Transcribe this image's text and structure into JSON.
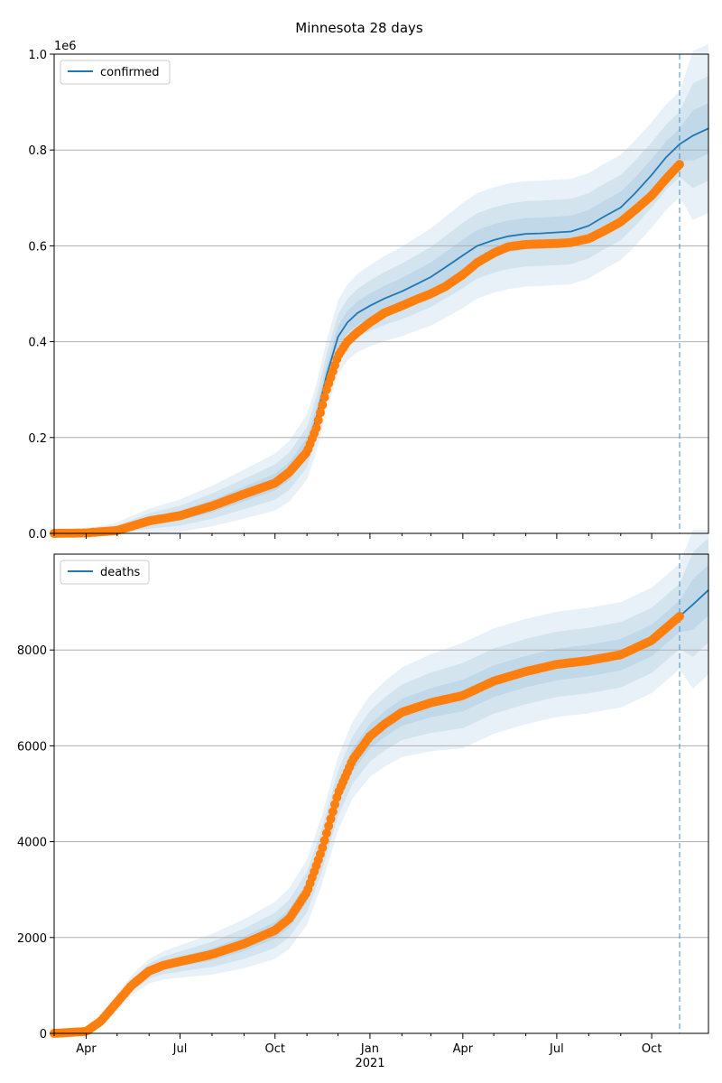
{
  "title": "Minnesota 28 days",
  "colors": {
    "model_line": "#1f77b4",
    "band": "#1f77b4",
    "observed": "#ff7f0e",
    "grid": "#b0b0b0",
    "axis": "#000000"
  },
  "chart_data": [
    {
      "type": "line",
      "panel": "top",
      "legend": [
        "confirmed"
      ],
      "legend_location": "upper left",
      "y_offset_label": "1e6",
      "y_ticks": [
        "0.0",
        "0.2",
        "0.4",
        "0.6",
        "0.8",
        "1.0"
      ],
      "x_ticks": [],
      "x_range": [
        "2020-03-01",
        "2021-11-25"
      ],
      "y_range": [
        0,
        1.0
      ],
      "y_unit_scale": 1000000,
      "grid": "horizontal",
      "forecast_start": "2021-10-28",
      "series": [
        {
          "name": "confirmed",
          "kind": "model",
          "x": [
            "2020-03-01",
            "2020-04-01",
            "2020-05-01",
            "2020-06-01",
            "2020-07-01",
            "2020-08-01",
            "2020-09-01",
            "2020-10-01",
            "2020-10-15",
            "2020-11-01",
            "2020-11-10",
            "2020-11-20",
            "2020-12-01",
            "2020-12-10",
            "2020-12-20",
            "2021-01-01",
            "2021-01-15",
            "2021-02-01",
            "2021-02-15",
            "2021-03-01",
            "2021-03-15",
            "2021-04-01",
            "2021-04-15",
            "2021-05-01",
            "2021-05-15",
            "2021-06-01",
            "2021-06-15",
            "2021-07-01",
            "2021-07-15",
            "2021-08-01",
            "2021-08-15",
            "2021-09-01",
            "2021-09-15",
            "2021-10-01",
            "2021-10-15",
            "2021-10-28",
            "2021-11-10",
            "2021-11-25"
          ],
          "y": [
            0.0,
            0.001,
            0.006,
            0.026,
            0.037,
            0.057,
            0.082,
            0.107,
            0.13,
            0.18,
            0.24,
            0.33,
            0.41,
            0.44,
            0.46,
            0.475,
            0.49,
            0.505,
            0.52,
            0.535,
            0.555,
            0.58,
            0.6,
            0.612,
            0.62,
            0.625,
            0.626,
            0.628,
            0.63,
            0.642,
            0.66,
            0.68,
            0.71,
            0.748,
            0.785,
            0.812,
            0.83,
            0.845
          ]
        },
        {
          "name": "confirmed observed",
          "kind": "observed",
          "x": [
            "2020-03-01",
            "2020-04-01",
            "2020-05-01",
            "2020-06-01",
            "2020-07-01",
            "2020-08-01",
            "2020-09-01",
            "2020-10-01",
            "2020-10-15",
            "2020-11-01",
            "2020-11-10",
            "2020-11-20",
            "2020-12-01",
            "2020-12-10",
            "2020-12-20",
            "2021-01-01",
            "2021-01-15",
            "2021-02-01",
            "2021-02-15",
            "2021-03-01",
            "2021-03-15",
            "2021-04-01",
            "2021-04-15",
            "2021-05-01",
            "2021-05-15",
            "2021-06-01",
            "2021-06-15",
            "2021-07-01",
            "2021-07-15",
            "2021-08-01",
            "2021-08-15",
            "2021-09-01",
            "2021-09-15",
            "2021-10-01",
            "2021-10-15",
            "2021-10-28"
          ],
          "y": [
            0.0,
            0.001,
            0.006,
            0.026,
            0.037,
            0.057,
            0.082,
            0.105,
            0.128,
            0.17,
            0.22,
            0.3,
            0.37,
            0.4,
            0.42,
            0.44,
            0.46,
            0.475,
            0.488,
            0.5,
            0.515,
            0.54,
            0.565,
            0.585,
            0.598,
            0.603,
            0.604,
            0.605,
            0.607,
            0.615,
            0.63,
            0.65,
            0.675,
            0.705,
            0.74,
            0.77
          ]
        }
      ]
    },
    {
      "type": "line",
      "panel": "bottom",
      "legend": [
        "deaths"
      ],
      "legend_location": "upper left",
      "y_ticks": [
        "0",
        "2000",
        "4000",
        "6000",
        "8000"
      ],
      "x_ticks": [
        "Apr",
        "Jul",
        "Oct",
        "Jan",
        "Apr",
        "Jul",
        "Oct"
      ],
      "x_tick_dates": [
        "2020-04-01",
        "2020-07-01",
        "2020-10-01",
        "2021-01-01",
        "2021-04-01",
        "2021-07-01",
        "2021-10-01"
      ],
      "x_secondary_label": "2021",
      "x_range": [
        "2020-03-01",
        "2021-11-25"
      ],
      "y_range": [
        0,
        10000
      ],
      "grid": "horizontal",
      "forecast_start": "2021-10-28",
      "series": [
        {
          "name": "deaths",
          "kind": "model",
          "x": [
            "2020-03-01",
            "2020-04-01",
            "2020-04-15",
            "2020-05-01",
            "2020-05-15",
            "2020-06-01",
            "2020-06-15",
            "2020-07-01",
            "2020-08-01",
            "2020-09-01",
            "2020-10-01",
            "2020-10-15",
            "2020-11-01",
            "2020-11-15",
            "2020-12-01",
            "2020-12-15",
            "2021-01-01",
            "2021-01-15",
            "2021-02-01",
            "2021-03-01",
            "2021-04-01",
            "2021-05-01",
            "2021-06-01",
            "2021-07-01",
            "2021-08-01",
            "2021-09-01",
            "2021-10-01",
            "2021-10-28",
            "2021-11-10",
            "2021-11-25"
          ],
          "y": [
            0,
            40,
            250,
            650,
            1000,
            1300,
            1420,
            1500,
            1650,
            1870,
            2150,
            2400,
            2950,
            3800,
            5000,
            5700,
            6200,
            6450,
            6700,
            6900,
            7050,
            7350,
            7550,
            7700,
            7780,
            7900,
            8200,
            8700,
            8950,
            9250
          ]
        },
        {
          "name": "deaths observed",
          "kind": "observed",
          "x": [
            "2020-03-01",
            "2020-04-01",
            "2020-04-15",
            "2020-05-01",
            "2020-05-15",
            "2020-06-01",
            "2020-06-15",
            "2020-07-01",
            "2020-08-01",
            "2020-09-01",
            "2020-10-01",
            "2020-10-15",
            "2020-11-01",
            "2020-11-15",
            "2020-12-01",
            "2020-12-15",
            "2021-01-01",
            "2021-01-15",
            "2021-02-01",
            "2021-03-01",
            "2021-04-01",
            "2021-05-01",
            "2021-06-01",
            "2021-07-01",
            "2021-08-01",
            "2021-09-01",
            "2021-10-01",
            "2021-10-28"
          ],
          "y": [
            0,
            40,
            250,
            650,
            1000,
            1300,
            1420,
            1500,
            1650,
            1870,
            2150,
            2400,
            2950,
            3800,
            5000,
            5700,
            6200,
            6450,
            6700,
            6900,
            7050,
            7350,
            7550,
            7700,
            7780,
            7900,
            8200,
            8700
          ]
        }
      ]
    }
  ]
}
